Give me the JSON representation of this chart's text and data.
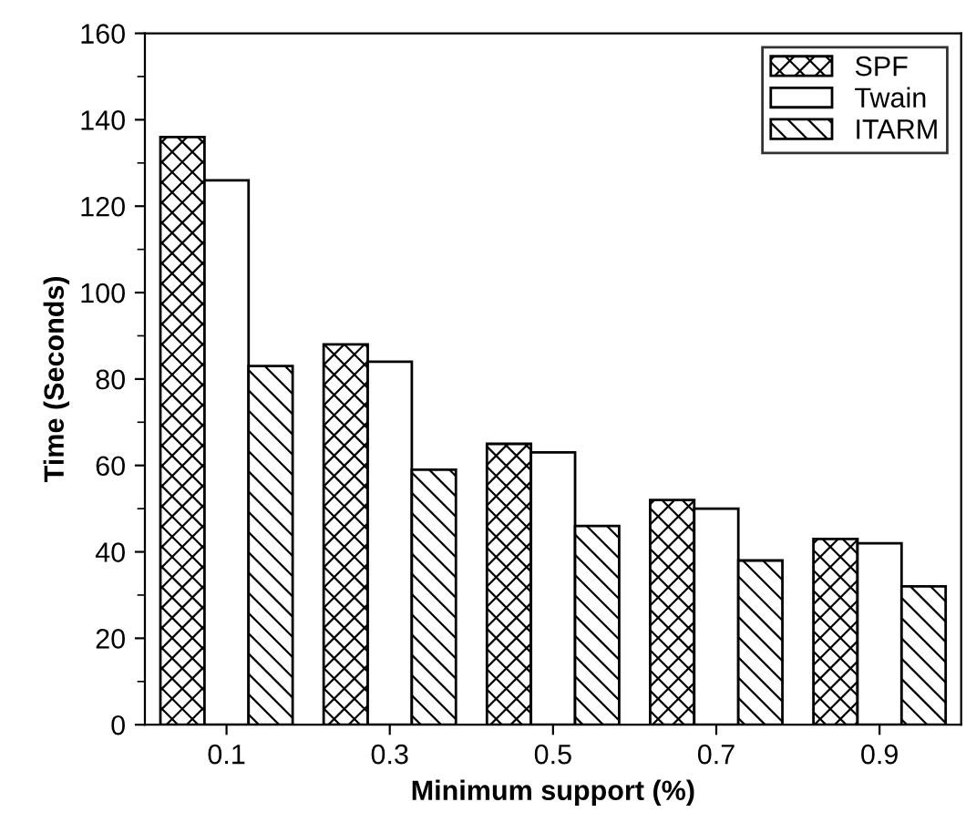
{
  "chart_data": {
    "type": "bar",
    "xlabel": "Minimum support (%)",
    "ylabel": "Time (Seconds)",
    "categories": [
      "0.1",
      "0.3",
      "0.5",
      "0.7",
      "0.9"
    ],
    "series": [
      {
        "name": "SPF",
        "color": "#000000",
        "values": [
          136,
          88,
          65,
          52,
          43
        ]
      },
      {
        "name": "Twain",
        "color": "#ffffff",
        "values": [
          126,
          84,
          63,
          50,
          42
        ]
      },
      {
        "name": "ITARM",
        "color": "#000000",
        "values": [
          83,
          59,
          46,
          38,
          32
        ]
      }
    ],
    "ylim": [
      0,
      160
    ],
    "yticks": [
      0,
      20,
      40,
      60,
      80,
      100,
      120,
      140,
      160
    ],
    "grid": false,
    "legend": "top right"
  }
}
